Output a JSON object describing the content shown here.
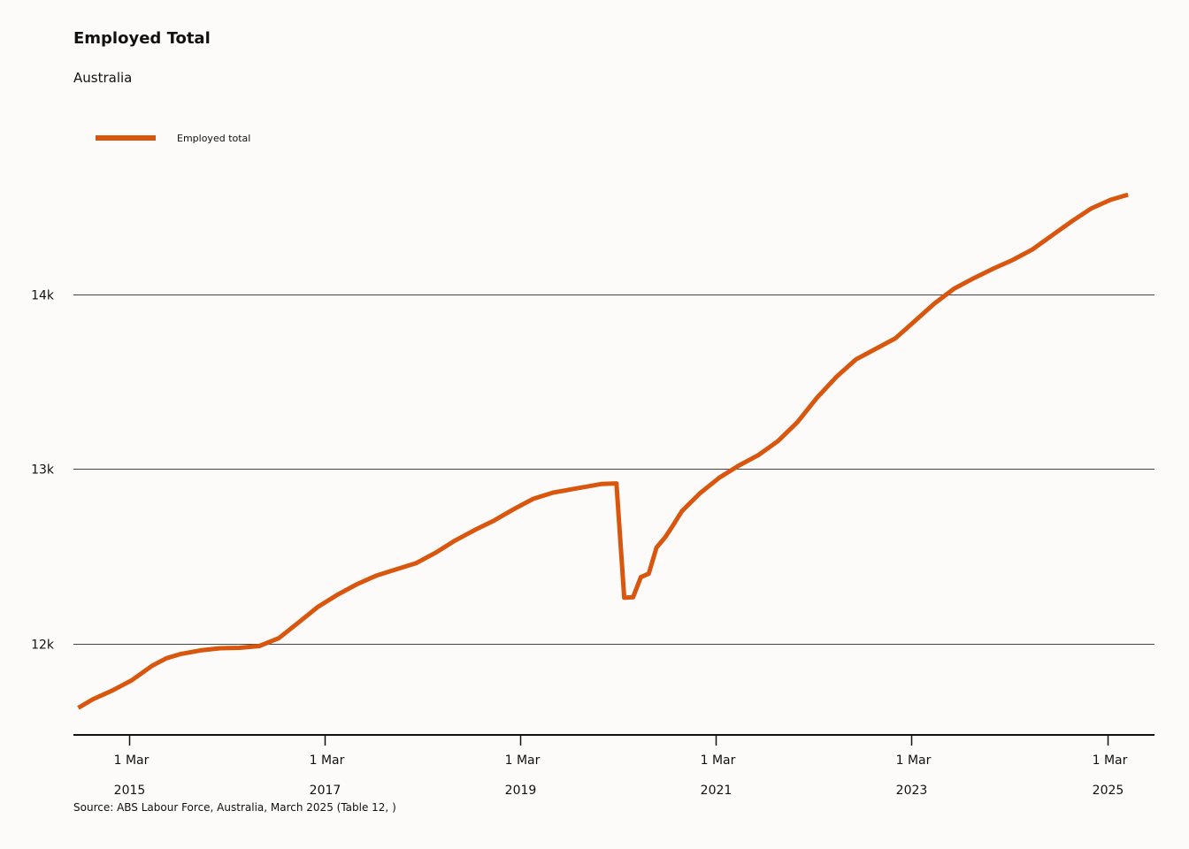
{
  "chart_data": {
    "type": "line",
    "title": "Employed Total",
    "subtitle": "Australia",
    "source": "Source: ABS Labour Force, Australia, March 2025 (Table 12, )",
    "xlabel": "",
    "ylabel": "",
    "ylim": [
      11480,
      14880
    ],
    "yticks": [
      {
        "value": 12000,
        "label": "12k"
      },
      {
        "value": 13000,
        "label": "13k"
      },
      {
        "value": 14000,
        "label": "14k"
      }
    ],
    "xticks": [
      {
        "value": 2015.167,
        "label_day": "1 Mar",
        "label_year": "2015"
      },
      {
        "value": 2017.167,
        "label_day": "1 Mar",
        "label_year": "2017"
      },
      {
        "value": 2019.167,
        "label_day": "1 Mar",
        "label_year": "2019"
      },
      {
        "value": 2021.167,
        "label_day": "1 Mar",
        "label_year": "2021"
      },
      {
        "value": 2023.167,
        "label_day": "1 Mar",
        "label_year": "2023"
      },
      {
        "value": 2025.167,
        "label_day": "1 Mar",
        "label_year": "2025"
      }
    ],
    "xlim": [
      2014.6,
      2025.65
    ],
    "grid": true,
    "legend_position": "top-left",
    "series": [
      {
        "name": "Employed total",
        "color": "#d9560e",
        "points": [
          [
            2014.65,
            11630
          ],
          [
            2014.8,
            11680
          ],
          [
            2015.0,
            11730
          ],
          [
            2015.2,
            11790
          ],
          [
            2015.4,
            11870
          ],
          [
            2015.55,
            11915
          ],
          [
            2015.7,
            11940
          ],
          [
            2015.9,
            11960
          ],
          [
            2016.1,
            11972
          ],
          [
            2016.3,
            11975
          ],
          [
            2016.5,
            11985
          ],
          [
            2016.7,
            12030
          ],
          [
            2016.9,
            12120
          ],
          [
            2017.1,
            12210
          ],
          [
            2017.3,
            12280
          ],
          [
            2017.5,
            12340
          ],
          [
            2017.7,
            12390
          ],
          [
            2017.9,
            12425
          ],
          [
            2018.1,
            12460
          ],
          [
            2018.3,
            12520
          ],
          [
            2018.5,
            12590
          ],
          [
            2018.7,
            12650
          ],
          [
            2018.9,
            12705
          ],
          [
            2019.1,
            12770
          ],
          [
            2019.3,
            12830
          ],
          [
            2019.5,
            12865
          ],
          [
            2019.7,
            12885
          ],
          [
            2019.9,
            12905
          ],
          [
            2020.0,
            12915
          ],
          [
            2020.15,
            12918
          ],
          [
            2020.23,
            12262
          ],
          [
            2020.32,
            12265
          ],
          [
            2020.4,
            12380
          ],
          [
            2020.48,
            12400
          ],
          [
            2020.56,
            12550
          ],
          [
            2020.65,
            12610
          ],
          [
            2020.72,
            12670
          ],
          [
            2020.82,
            12760
          ],
          [
            2021.0,
            12860
          ],
          [
            2021.2,
            12950
          ],
          [
            2021.4,
            13020
          ],
          [
            2021.6,
            13080
          ],
          [
            2021.8,
            13160
          ],
          [
            2022.0,
            13270
          ],
          [
            2022.2,
            13410
          ],
          [
            2022.4,
            13530
          ],
          [
            2022.6,
            13630
          ],
          [
            2022.8,
            13690
          ],
          [
            2023.0,
            13750
          ],
          [
            2023.2,
            13850
          ],
          [
            2023.4,
            13950
          ],
          [
            2023.6,
            14035
          ],
          [
            2023.8,
            14095
          ],
          [
            2024.0,
            14150
          ],
          [
            2024.2,
            14200
          ],
          [
            2024.4,
            14260
          ],
          [
            2024.6,
            14340
          ],
          [
            2024.8,
            14420
          ],
          [
            2025.0,
            14495
          ],
          [
            2025.2,
            14545
          ],
          [
            2025.38,
            14575
          ]
        ]
      }
    ]
  }
}
